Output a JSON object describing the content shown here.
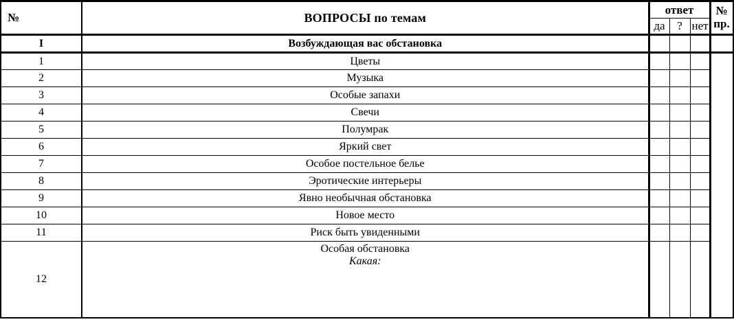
{
  "colors": {
    "border": "#000000",
    "background": "#ffffff",
    "text": "#000000"
  },
  "table": {
    "header": {
      "num": "№",
      "questions": "ВОПРОСЫ по темам",
      "answer_group": "ответ",
      "answer_options": [
        "да",
        "?",
        "нет"
      ],
      "ref_line1": "№",
      "ref_line2": "пр."
    },
    "section": {
      "num": "I",
      "title": "Возбуждающая вас обстановка"
    },
    "rows": [
      {
        "num": "1",
        "text": "Цветы"
      },
      {
        "num": "2",
        "text": "Музыка"
      },
      {
        "num": "3",
        "text": "Особые запахи"
      },
      {
        "num": "4",
        "text": "Свечи"
      },
      {
        "num": "5",
        "text": "Полумрак"
      },
      {
        "num": "6",
        "text": "Яркий свет"
      },
      {
        "num": "7",
        "text": "Особое постельное белье"
      },
      {
        "num": "8",
        "text": "Эротические интерьеры"
      },
      {
        "num": "9",
        "text": "Явно необычная обстановка"
      },
      {
        "num": "10",
        "text": "Новое место"
      },
      {
        "num": "11",
        "text": "Риск быть увиденными"
      },
      {
        "num": "12",
        "text": "Особая обстановка",
        "note": "Какая:"
      }
    ]
  }
}
